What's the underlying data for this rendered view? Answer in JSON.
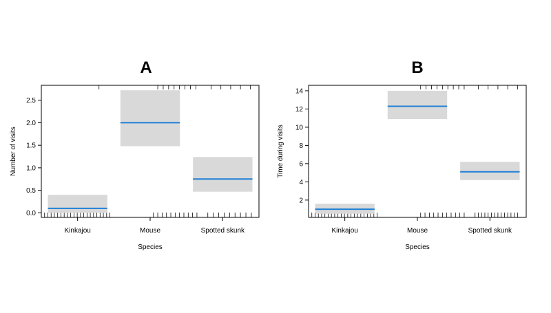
{
  "chart_data": [
    {
      "type": "effect-plot",
      "title": "A",
      "xlabel": "Species",
      "ylabel": "Number of visits",
      "categories": [
        "Kinkajou",
        "Mouse",
        "Spotted skunk"
      ],
      "estimates": [
        0.1,
        2.0,
        0.75
      ],
      "ci_lower": [
        0.0,
        1.48,
        0.47
      ],
      "ci_upper": [
        0.4,
        2.72,
        1.24
      ],
      "yticks": [
        0.0,
        0.5,
        1.0,
        1.5,
        2.0,
        2.5
      ],
      "ytick_labels": [
        "0.0",
        "0.5",
        "1.0",
        "1.5",
        "2.0",
        "2.5"
      ],
      "ylim": [
        -0.1,
        2.83
      ],
      "rug_bottom": [
        0.06,
        0.12,
        0.18,
        0.24,
        0.3,
        0.36,
        0.42,
        0.48,
        0.54,
        0.6,
        0.66,
        0.72,
        0.78,
        0.84,
        0.9,
        0.96,
        1.02,
        1.08,
        1.14,
        1.2,
        1.26,
        2.06,
        2.14,
        2.22,
        2.3,
        2.38,
        2.46,
        2.54,
        2.62,
        2.7,
        2.78,
        2.86,
        3.06,
        3.16,
        3.26,
        3.36,
        3.46,
        3.56,
        3.66,
        3.76,
        3.86
      ],
      "rug_top": [
        1.06,
        2.14,
        2.24,
        2.34,
        2.44,
        2.54,
        2.64,
        2.74,
        2.84,
        3.12,
        3.3,
        3.48,
        3.66,
        3.84
      ]
    },
    {
      "type": "effect-plot",
      "title": "B",
      "xlabel": "Species",
      "ylabel": "Time during visits",
      "categories": [
        "Kinkajou",
        "Mouse",
        "Spotted skunk"
      ],
      "estimates": [
        1.0,
        12.3,
        5.1
      ],
      "ci_lower": [
        0.5,
        10.9,
        4.2
      ],
      "ci_upper": [
        1.6,
        14.0,
        6.2
      ],
      "yticks": [
        2,
        4,
        6,
        8,
        10,
        12,
        14
      ],
      "ytick_labels": [
        "2",
        "4",
        "6",
        "8",
        "10",
        "12",
        "14"
      ],
      "ylim": [
        0.1,
        14.6
      ],
      "rug_bottom": [
        0.06,
        0.12,
        0.18,
        0.24,
        0.3,
        0.36,
        0.42,
        0.48,
        0.54,
        0.6,
        0.66,
        0.72,
        0.78,
        0.84,
        0.9,
        0.96,
        1.02,
        1.08,
        1.14,
        1.2,
        1.26,
        2.06,
        2.14,
        2.22,
        2.3,
        2.38,
        2.46,
        2.54,
        2.62,
        2.7,
        2.78,
        2.86,
        3.06,
        3.12,
        3.18,
        3.24,
        3.3,
        3.36,
        3.42,
        3.48,
        3.54,
        3.6,
        3.66,
        3.72,
        3.78,
        3.84
      ],
      "rug_top": [
        2.06,
        2.16,
        2.26,
        2.36,
        2.46,
        2.56,
        2.66,
        2.76,
        2.86,
        3.12,
        3.3,
        3.48,
        3.66,
        3.84
      ]
    }
  ],
  "colors": {
    "ci_fill": "#d9d9d9",
    "estimate_line": "#1f7fd6",
    "axis": "#000000"
  }
}
